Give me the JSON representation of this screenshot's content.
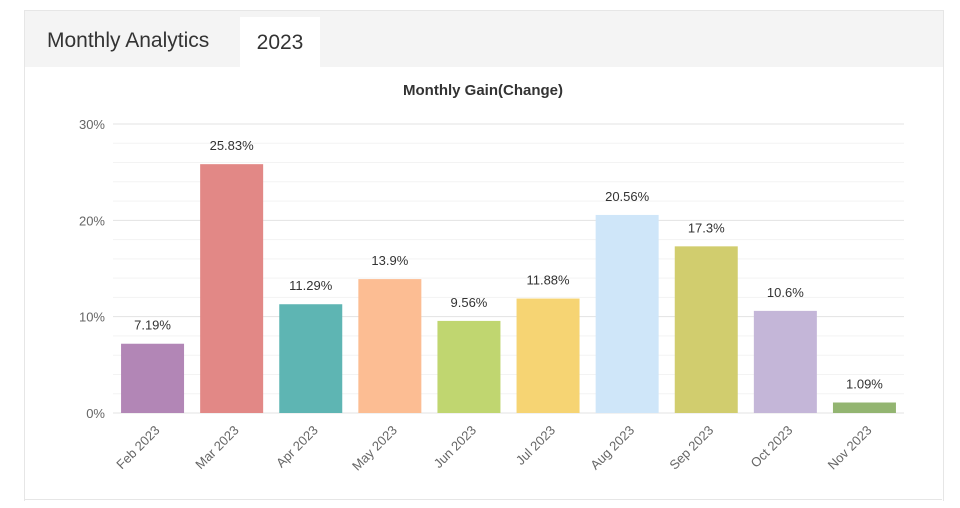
{
  "header": {
    "title": "Monthly Analytics",
    "year_tab": "2023"
  },
  "chart_data": {
    "type": "bar",
    "title": "Monthly Gain(Change)",
    "categories": [
      "Feb 2023",
      "Mar 2023",
      "Apr 2023",
      "May 2023",
      "Jun 2023",
      "Jul 2023",
      "Aug 2023",
      "Sep 2023",
      "Oct 2023",
      "Nov 2023"
    ],
    "values": [
      7.19,
      25.83,
      11.29,
      13.9,
      9.56,
      11.88,
      20.56,
      17.3,
      10.6,
      1.09
    ],
    "data_labels": [
      "7.19%",
      "25.83%",
      "11.29%",
      "13.9%",
      "9.56%",
      "11.88%",
      "20.56%",
      "17.3%",
      "10.6%",
      "1.09%"
    ],
    "colors": [
      "#b286b6",
      "#e28886",
      "#5eb5b3",
      "#fcbd93",
      "#c0d670",
      "#f6d473",
      "#cfe6f9",
      "#d1cd6e",
      "#c4b6d8",
      "#93b571"
    ],
    "ylim": [
      0,
      30
    ],
    "yticks": [
      0,
      10,
      20,
      30
    ],
    "ytick_labels": [
      "0%",
      "10%",
      "20%",
      "30%"
    ],
    "xlabel": "",
    "ylabel": "",
    "grid": true,
    "legend": "none"
  }
}
